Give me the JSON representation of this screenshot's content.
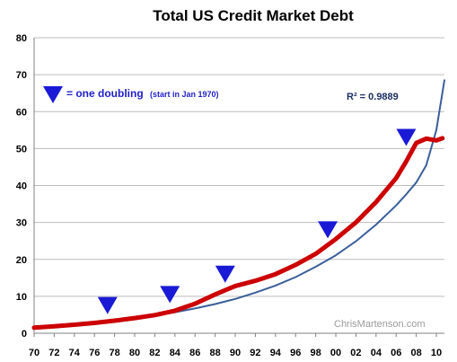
{
  "chart_data": {
    "type": "line",
    "title": "Total US Credit Market Debt",
    "xlabel": "",
    "ylabel": "",
    "ylim": [
      0,
      80
    ],
    "xlim": [
      1970,
      2010.8
    ],
    "x_tick_labels": [
      "70",
      "72",
      "74",
      "76",
      "78",
      "80",
      "82",
      "84",
      "86",
      "88",
      "90",
      "92",
      "94",
      "96",
      "98",
      "00",
      "02",
      "04",
      "06",
      "08",
      "10"
    ],
    "y_tick_labels": [
      "0",
      "10",
      "20",
      "30",
      "40",
      "50",
      "60",
      "70",
      "80"
    ],
    "grid": "horizontal",
    "series": [
      {
        "color": "#cc0000",
        "x": [
          1970,
          1972,
          1974,
          1976,
          1978,
          1980,
          1982,
          1984,
          1986,
          1988,
          1990,
          1992,
          1994,
          1996,
          1998,
          2000,
          2002,
          2004,
          2006,
          2007,
          2008,
          2009,
          2010,
          2010.6
        ],
        "y": [
          1.5,
          1.9,
          2.3,
          2.8,
          3.4,
          4.1,
          4.9,
          6.1,
          8.0,
          10.5,
          12.8,
          14.2,
          16.0,
          18.5,
          21.5,
          25.5,
          30.0,
          35.5,
          42.0,
          46.5,
          51.5,
          52.7,
          52.2,
          52.8
        ]
      },
      {
        "color": "#3a5f9a",
        "x": [
          1970,
          1972,
          1974,
          1976,
          1978,
          1980,
          1982,
          1984,
          1986,
          1988,
          1990,
          1992,
          1994,
          1996,
          1998,
          2000,
          2002,
          2004,
          2006,
          2007,
          2008,
          2009,
          2010,
          2010.8
        ],
        "y": [
          1.8,
          2.12,
          2.5,
          2.95,
          3.47,
          4.09,
          4.83,
          5.69,
          6.7,
          7.9,
          9.3,
          11.0,
          12.9,
          15.2,
          18.0,
          21.1,
          24.9,
          29.4,
          34.6,
          37.6,
          40.8,
          45.5,
          55.0,
          68.5
        ]
      }
    ],
    "markers": [
      {
        "x": 1977.3,
        "y": 7.5
      },
      {
        "x": 1983.5,
        "y": 10.5
      },
      {
        "x": 1989.0,
        "y": 16.0
      },
      {
        "x": 1999.2,
        "y": 28.0
      },
      {
        "x": 2007.0,
        "y": 53.0
      }
    ],
    "legend_label": "= one doubling",
    "legend_sub": "(start in Jan 1970)",
    "annotation": "R² = 0.9889",
    "watermark": "ChrisMartenson.com",
    "colors": {
      "marker": "#1a1ad6",
      "grid": "#bdbdbd"
    }
  }
}
